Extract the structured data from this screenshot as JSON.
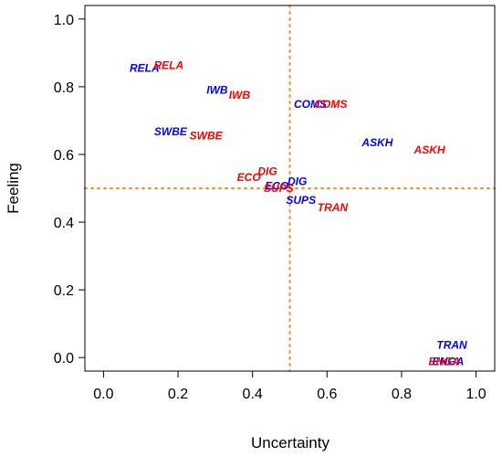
{
  "colors": {
    "series_blue": "#0000ff",
    "series_red": "#ff0000",
    "reference_line": "#ff8c1a",
    "axis": "#000000"
  },
  "chart_data": {
    "type": "scatter",
    "xlabel": "Uncertainty",
    "ylabel": "Feeling",
    "xlim": [
      -0.05,
      1.05
    ],
    "ylim": [
      -0.04,
      1.04
    ],
    "xticks": [
      "0.0",
      "0.2",
      "0.4",
      "0.6",
      "0.8",
      "1.0"
    ],
    "yticks": [
      "0.0",
      "0.2",
      "0.4",
      "0.6",
      "0.8",
      "1.0"
    ],
    "xtick_values": [
      0.0,
      0.2,
      0.4,
      0.6,
      0.8,
      1.0
    ],
    "ytick_values": [
      0.0,
      0.2,
      0.4,
      0.6,
      0.8,
      1.0
    ],
    "reference_lines": {
      "x": 0.5,
      "y": 0.5,
      "style": "dotted"
    },
    "grid": false,
    "legend": "none",
    "series": [
      {
        "color": "blue",
        "points": [
          {
            "label": "RELA",
            "x": 0.11,
            "y": 0.855
          },
          {
            "label": "IWB",
            "x": 0.305,
            "y": 0.79
          },
          {
            "label": "SWBE",
            "x": 0.18,
            "y": 0.667
          },
          {
            "label": "COMS",
            "x": 0.555,
            "y": 0.748
          },
          {
            "label": "ASKH",
            "x": 0.735,
            "y": 0.635
          },
          {
            "label": "DIG",
            "x": 0.52,
            "y": 0.52
          },
          {
            "label": "ECO",
            "x": 0.465,
            "y": 0.507
          },
          {
            "label": "SUPS",
            "x": 0.53,
            "y": 0.465
          },
          {
            "label": "TRAN",
            "x": 0.935,
            "y": 0.037
          },
          {
            "label": "ENGA",
            "x": 0.925,
            "y": -0.012
          }
        ]
      },
      {
        "color": "red",
        "points": [
          {
            "label": "RELA",
            "x": 0.175,
            "y": 0.863
          },
          {
            "label": "IWB",
            "x": 0.365,
            "y": 0.776
          },
          {
            "label": "SWBE",
            "x": 0.275,
            "y": 0.655
          },
          {
            "label": "COMS",
            "x": 0.61,
            "y": 0.748
          },
          {
            "label": "ASKH",
            "x": 0.875,
            "y": 0.613
          },
          {
            "label": "DIG",
            "x": 0.44,
            "y": 0.55
          },
          {
            "label": "ECO",
            "x": 0.39,
            "y": 0.533
          },
          {
            "label": "SUPS",
            "x": 0.47,
            "y": 0.5
          },
          {
            "label": "TRAN",
            "x": 0.615,
            "y": 0.443
          },
          {
            "label": "ENGA",
            "x": 0.915,
            "y": -0.012
          }
        ]
      }
    ]
  }
}
